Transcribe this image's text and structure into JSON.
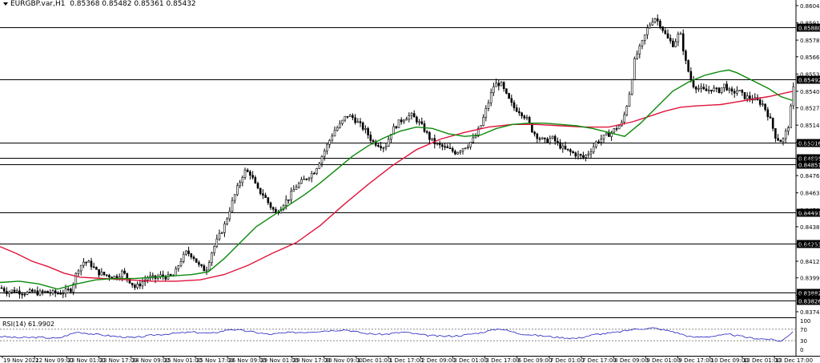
{
  "header": {
    "symbol": "EURGBP.var,H1",
    "ohlc": "0.85368 0.85482 0.85361 0.85432"
  },
  "rsi_label": "RSI(14) 61.9902",
  "colors": {
    "candle": "#000000",
    "ma_fast": "#0a8a0a",
    "ma_slow": "#e0143c",
    "rsi": "#2020c0",
    "level_line": "#000000"
  },
  "chart_data": {
    "type": "line",
    "title": "",
    "price_axis": {
      "min": 0.8374,
      "max": 0.86045,
      "ticks": [
        "0.86045",
        "0.85915",
        "0.85785",
        "0.85660",
        "0.85530",
        "0.85400",
        "0.85275",
        "0.85145",
        "0.85016",
        "0.84890",
        "0.84765",
        "0.84635",
        "0.84505",
        "0.84380",
        "0.84250",
        "0.84120",
        "0.83995",
        "0.83865",
        "0.83740"
      ]
    },
    "horizontal_levels": [
      "0.85880",
      "0.85492",
      "0.85016",
      "0.84896",
      "0.84851",
      "0.84491",
      "0.84253",
      "0.83882",
      "0.83826"
    ],
    "current_price": "0.85432",
    "time_labels": [
      "19 Nov 2021",
      "22 Nov 09:00",
      "23 Nov 01:00",
      "23 Nov 17:00",
      "24 Nov 09:00",
      "25 Nov 01:00",
      "25 Nov 17:00",
      "26 Nov 09:00",
      "29 Nov 01:00",
      "29 Nov 17:00",
      "30 Nov 09:00",
      "1 Dec 01:00",
      "1 Dec 17:00",
      "2 Dec 09:00",
      "3 Dec 01:00",
      "3 Dec 17:00",
      "6 Dec 09:00",
      "7 Dec 01:00",
      "7 Dec 17:00",
      "8 Dec 09:00",
      "9 Dec 01:00",
      "9 Dec 17:00",
      "10 Dec 09:00",
      "13 Dec 01:00",
      "13 Dec 17:00"
    ],
    "price_path": [
      [
        0,
        0.8392
      ],
      [
        8,
        0.8389
      ],
      [
        16,
        0.839
      ],
      [
        24,
        0.8389
      ],
      [
        32,
        0.8388
      ],
      [
        40,
        0.8389
      ],
      [
        48,
        0.8388
      ],
      [
        56,
        0.8389
      ],
      [
        64,
        0.8388
      ],
      [
        72,
        0.8388
      ],
      [
        80,
        0.8389
      ],
      [
        88,
        0.8391
      ],
      [
        96,
        0.8406
      ],
      [
        104,
        0.8412
      ],
      [
        112,
        0.841
      ],
      [
        120,
        0.8404
      ],
      [
        128,
        0.8402
      ],
      [
        136,
        0.8401
      ],
      [
        144,
        0.84
      ],
      [
        152,
        0.8404
      ],
      [
        160,
        0.8398
      ],
      [
        168,
        0.8392
      ],
      [
        176,
        0.8396
      ],
      [
        184,
        0.84
      ],
      [
        192,
        0.8399
      ],
      [
        200,
        0.8401
      ],
      [
        208,
        0.84
      ],
      [
        216,
        0.8401
      ],
      [
        224,
        0.8412
      ],
      [
        232,
        0.8419
      ],
      [
        240,
        0.8416
      ],
      [
        248,
        0.8408
      ],
      [
        256,
        0.8405
      ],
      [
        264,
        0.842
      ],
      [
        272,
        0.843
      ],
      [
        280,
        0.844
      ],
      [
        288,
        0.8455
      ],
      [
        296,
        0.8468
      ],
      [
        304,
        0.848
      ],
      [
        312,
        0.8478
      ],
      [
        320,
        0.8466
      ],
      [
        328,
        0.8462
      ],
      [
        336,
        0.8454
      ],
      [
        344,
        0.8448
      ],
      [
        352,
        0.8455
      ],
      [
        360,
        0.846
      ],
      [
        368,
        0.8468
      ],
      [
        376,
        0.8472
      ],
      [
        384,
        0.8476
      ],
      [
        392,
        0.848
      ],
      [
        400,
        0.849
      ],
      [
        408,
        0.85
      ],
      [
        416,
        0.851
      ],
      [
        424,
        0.8515
      ],
      [
        432,
        0.8522
      ],
      [
        440,
        0.852
      ],
      [
        448,
        0.8515
      ],
      [
        456,
        0.851
      ],
      [
        464,
        0.8502
      ],
      [
        472,
        0.85
      ],
      [
        480,
        0.8498
      ],
      [
        488,
        0.851
      ],
      [
        496,
        0.8516
      ],
      [
        504,
        0.852
      ],
      [
        512,
        0.8522
      ],
      [
        520,
        0.8518
      ],
      [
        528,
        0.8512
      ],
      [
        536,
        0.8504
      ],
      [
        544,
        0.85
      ],
      [
        552,
        0.8498
      ],
      [
        560,
        0.8496
      ],
      [
        568,
        0.8494
      ],
      [
        576,
        0.8497
      ],
      [
        584,
        0.85
      ],
      [
        592,
        0.8505
      ],
      [
        600,
        0.8515
      ],
      [
        608,
        0.853
      ],
      [
        616,
        0.8545
      ],
      [
        624,
        0.8546
      ],
      [
        632,
        0.8536
      ],
      [
        640,
        0.8528
      ],
      [
        648,
        0.8525
      ],
      [
        656,
        0.852
      ],
      [
        664,
        0.851
      ],
      [
        672,
        0.8505
      ],
      [
        680,
        0.8502
      ],
      [
        688,
        0.8505
      ],
      [
        696,
        0.85
      ],
      [
        704,
        0.8496
      ],
      [
        712,
        0.8494
      ],
      [
        720,
        0.8492
      ],
      [
        728,
        0.849
      ],
      [
        736,
        0.8495
      ],
      [
        744,
        0.8502
      ],
      [
        752,
        0.8505
      ],
      [
        760,
        0.8508
      ],
      [
        768,
        0.8512
      ],
      [
        776,
        0.8516
      ],
      [
        784,
        0.8535
      ],
      [
        792,
        0.8565
      ],
      [
        800,
        0.8575
      ],
      [
        808,
        0.8588
      ],
      [
        816,
        0.8596
      ],
      [
        824,
        0.859
      ],
      [
        832,
        0.858
      ],
      [
        840,
        0.8575
      ],
      [
        848,
        0.8585
      ],
      [
        856,
        0.856
      ],
      [
        864,
        0.8545
      ],
      [
        872,
        0.8542
      ],
      [
        880,
        0.854
      ],
      [
        888,
        0.8542
      ],
      [
        896,
        0.854
      ],
      [
        904,
        0.8545
      ],
      [
        912,
        0.8538
      ],
      [
        920,
        0.8541
      ],
      [
        928,
        0.8536
      ],
      [
        936,
        0.8535
      ],
      [
        944,
        0.8533
      ],
      [
        952,
        0.853
      ],
      [
        960,
        0.852
      ],
      [
        968,
        0.8505
      ],
      [
        976,
        0.8502
      ],
      [
        984,
        0.8515
      ],
      [
        990,
        0.8543
      ]
    ],
    "ma_fast": [
      [
        0,
        0.8396
      ],
      [
        24,
        0.8397
      ],
      [
        48,
        0.8395
      ],
      [
        72,
        0.8391
      ],
      [
        96,
        0.8395
      ],
      [
        120,
        0.8398
      ],
      [
        144,
        0.8399
      ],
      [
        168,
        0.8399
      ],
      [
        192,
        0.84
      ],
      [
        216,
        0.8401
      ],
      [
        240,
        0.8402
      ],
      [
        260,
        0.8404
      ],
      [
        280,
        0.8414
      ],
      [
        300,
        0.8426
      ],
      [
        320,
        0.8438
      ],
      [
        340,
        0.8446
      ],
      [
        360,
        0.8454
      ],
      [
        380,
        0.8462
      ],
      [
        400,
        0.8471
      ],
      [
        420,
        0.8481
      ],
      [
        440,
        0.8491
      ],
      [
        460,
        0.8499
      ],
      [
        480,
        0.8505
      ],
      [
        500,
        0.851
      ],
      [
        520,
        0.8513
      ],
      [
        540,
        0.8512
      ],
      [
        560,
        0.8508
      ],
      [
        580,
        0.8506
      ],
      [
        600,
        0.8507
      ],
      [
        620,
        0.8512
      ],
      [
        640,
        0.8515
      ],
      [
        660,
        0.8516
      ],
      [
        680,
        0.8516
      ],
      [
        700,
        0.8515
      ],
      [
        720,
        0.8514
      ],
      [
        740,
        0.8512
      ],
      [
        760,
        0.8509
      ],
      [
        780,
        0.8506
      ],
      [
        800,
        0.8516
      ],
      [
        820,
        0.8528
      ],
      [
        840,
        0.854
      ],
      [
        860,
        0.8547
      ],
      [
        880,
        0.8552
      ],
      [
        900,
        0.8555
      ],
      [
        910,
        0.8556
      ],
      [
        920,
        0.8554
      ],
      [
        940,
        0.8548
      ],
      [
        960,
        0.8542
      ],
      [
        975,
        0.8536
      ],
      [
        990,
        0.8533
      ]
    ],
    "ma_slow": [
      [
        0,
        0.8423
      ],
      [
        20,
        0.8418
      ],
      [
        40,
        0.8412
      ],
      [
        60,
        0.8408
      ],
      [
        80,
        0.8403
      ],
      [
        100,
        0.84
      ],
      [
        130,
        0.8399
      ],
      [
        160,
        0.8398
      ],
      [
        190,
        0.8397
      ],
      [
        220,
        0.8397
      ],
      [
        250,
        0.8398
      ],
      [
        280,
        0.8402
      ],
      [
        310,
        0.8409
      ],
      [
        340,
        0.8418
      ],
      [
        370,
        0.8426
      ],
      [
        400,
        0.8439
      ],
      [
        430,
        0.8455
      ],
      [
        460,
        0.847
      ],
      [
        490,
        0.8484
      ],
      [
        520,
        0.8496
      ],
      [
        550,
        0.8504
      ],
      [
        580,
        0.8509
      ],
      [
        610,
        0.8513
      ],
      [
        640,
        0.8515
      ],
      [
        670,
        0.8515
      ],
      [
        700,
        0.8514
      ],
      [
        730,
        0.8513
      ],
      [
        760,
        0.8513
      ],
      [
        790,
        0.8517
      ],
      [
        810,
        0.8521
      ],
      [
        830,
        0.8525
      ],
      [
        850,
        0.8528
      ],
      [
        870,
        0.8529
      ],
      [
        900,
        0.853
      ],
      [
        930,
        0.8533
      ],
      [
        960,
        0.8536
      ],
      [
        990,
        0.854
      ]
    ],
    "rsi": {
      "label": "RSI(14) 61.9902",
      "range": [
        0,
        100
      ],
      "ticks": [
        "100",
        "70",
        "30",
        "0"
      ],
      "values": [
        [
          0,
          45
        ],
        [
          24,
          40
        ],
        [
          48,
          42
        ],
        [
          72,
          38
        ],
        [
          96,
          60
        ],
        [
          120,
          52
        ],
        [
          144,
          45
        ],
        [
          168,
          40
        ],
        [
          192,
          50
        ],
        [
          216,
          55
        ],
        [
          240,
          60
        ],
        [
          264,
          55
        ],
        [
          288,
          70
        ],
        [
          312,
          62
        ],
        [
          336,
          52
        ],
        [
          360,
          58
        ],
        [
          384,
          60
        ],
        [
          408,
          65
        ],
        [
          432,
          68
        ],
        [
          456,
          55
        ],
        [
          480,
          52
        ],
        [
          504,
          60
        ],
        [
          528,
          50
        ],
        [
          552,
          45
        ],
        [
          576,
          48
        ],
        [
          600,
          58
        ],
        [
          624,
          72
        ],
        [
          648,
          55
        ],
        [
          672,
          48
        ],
        [
          696,
          42
        ],
        [
          720,
          38
        ],
        [
          744,
          52
        ],
        [
          768,
          58
        ],
        [
          792,
          70
        ],
        [
          816,
          74
        ],
        [
          840,
          62
        ],
        [
          864,
          42
        ],
        [
          888,
          45
        ],
        [
          912,
          52
        ],
        [
          936,
          40
        ],
        [
          960,
          35
        ],
        [
          976,
          28
        ],
        [
          990,
          62
        ]
      ]
    }
  }
}
